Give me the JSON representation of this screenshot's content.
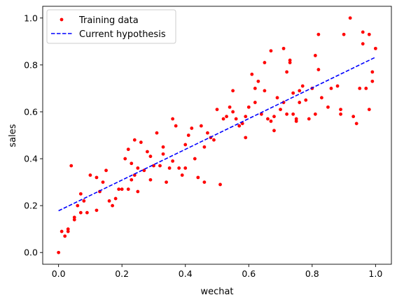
{
  "chart_data": {
    "type": "scatter",
    "title": "",
    "xlabel": "wechat",
    "ylabel": "sales",
    "xlim": [
      -0.05,
      1.05
    ],
    "ylim": [
      -0.05,
      1.05
    ],
    "xticks": [
      0.0,
      0.2,
      0.4,
      0.6,
      0.8,
      1.0
    ],
    "yticks": [
      0.0,
      0.2,
      0.4,
      0.6,
      0.8,
      1.0
    ],
    "xtick_labels": [
      "0.0",
      "0.2",
      "0.4",
      "0.6",
      "0.8",
      "1.0"
    ],
    "ytick_labels": [
      "0.0",
      "0.2",
      "0.4",
      "0.6",
      "0.8",
      "1.0"
    ],
    "grid": false,
    "legend": {
      "position": "top-left"
    },
    "series": [
      {
        "name": "Training data",
        "kind": "points",
        "color": "#ff0000",
        "points": [
          [
            0.0,
            0.0
          ],
          [
            0.01,
            0.09
          ],
          [
            0.02,
            0.07
          ],
          [
            0.03,
            0.1
          ],
          [
            0.03,
            0.09
          ],
          [
            0.04,
            0.37
          ],
          [
            0.05,
            0.15
          ],
          [
            0.05,
            0.14
          ],
          [
            0.06,
            0.2
          ],
          [
            0.07,
            0.25
          ],
          [
            0.07,
            0.17
          ],
          [
            0.08,
            0.22
          ],
          [
            0.09,
            0.17
          ],
          [
            0.1,
            0.33
          ],
          [
            0.12,
            0.18
          ],
          [
            0.12,
            0.32
          ],
          [
            0.13,
            0.26
          ],
          [
            0.14,
            0.3
          ],
          [
            0.15,
            0.35
          ],
          [
            0.16,
            0.22
          ],
          [
            0.17,
            0.2
          ],
          [
            0.18,
            0.23
          ],
          [
            0.19,
            0.27
          ],
          [
            0.2,
            0.27
          ],
          [
            0.21,
            0.4
          ],
          [
            0.22,
            0.27
          ],
          [
            0.22,
            0.44
          ],
          [
            0.23,
            0.31
          ],
          [
            0.23,
            0.38
          ],
          [
            0.24,
            0.33
          ],
          [
            0.24,
            0.48
          ],
          [
            0.25,
            0.36
          ],
          [
            0.25,
            0.26
          ],
          [
            0.26,
            0.47
          ],
          [
            0.27,
            0.35
          ],
          [
            0.28,
            0.43
          ],
          [
            0.29,
            0.41
          ],
          [
            0.29,
            0.31
          ],
          [
            0.3,
            0.37
          ],
          [
            0.31,
            0.51
          ],
          [
            0.32,
            0.37
          ],
          [
            0.33,
            0.42
          ],
          [
            0.33,
            0.45
          ],
          [
            0.34,
            0.3
          ],
          [
            0.35,
            0.36
          ],
          [
            0.36,
            0.57
          ],
          [
            0.36,
            0.39
          ],
          [
            0.37,
            0.54
          ],
          [
            0.38,
            0.36
          ],
          [
            0.39,
            0.33
          ],
          [
            0.4,
            0.46
          ],
          [
            0.4,
            0.36
          ],
          [
            0.41,
            0.5
          ],
          [
            0.42,
            0.53
          ],
          [
            0.43,
            0.4
          ],
          [
            0.44,
            0.32
          ],
          [
            0.45,
            0.54
          ],
          [
            0.46,
            0.45
          ],
          [
            0.46,
            0.3
          ],
          [
            0.47,
            0.51
          ],
          [
            0.48,
            0.49
          ],
          [
            0.49,
            0.48
          ],
          [
            0.5,
            0.61
          ],
          [
            0.51,
            0.29
          ],
          [
            0.52,
            0.57
          ],
          [
            0.53,
            0.58
          ],
          [
            0.54,
            0.62
          ],
          [
            0.55,
            0.6
          ],
          [
            0.55,
            0.69
          ],
          [
            0.56,
            0.57
          ],
          [
            0.57,
            0.54
          ],
          [
            0.58,
            0.55
          ],
          [
            0.59,
            0.58
          ],
          [
            0.59,
            0.49
          ],
          [
            0.6,
            0.62
          ],
          [
            0.61,
            0.76
          ],
          [
            0.62,
            0.7
          ],
          [
            0.62,
            0.64
          ],
          [
            0.63,
            0.73
          ],
          [
            0.64,
            0.59
          ],
          [
            0.65,
            0.69
          ],
          [
            0.65,
            0.81
          ],
          [
            0.66,
            0.57
          ],
          [
            0.67,
            0.86
          ],
          [
            0.67,
            0.56
          ],
          [
            0.68,
            0.52
          ],
          [
            0.68,
            0.58
          ],
          [
            0.69,
            0.66
          ],
          [
            0.7,
            0.61
          ],
          [
            0.71,
            0.87
          ],
          [
            0.71,
            0.64
          ],
          [
            0.72,
            0.77
          ],
          [
            0.72,
            0.59
          ],
          [
            0.73,
            0.82
          ],
          [
            0.73,
            0.81
          ],
          [
            0.74,
            0.59
          ],
          [
            0.74,
            0.68
          ],
          [
            0.75,
            0.57
          ],
          [
            0.75,
            0.56
          ],
          [
            0.76,
            0.69
          ],
          [
            0.76,
            0.64
          ],
          [
            0.77,
            0.71
          ],
          [
            0.78,
            0.65
          ],
          [
            0.79,
            0.57
          ],
          [
            0.8,
            0.7
          ],
          [
            0.81,
            0.84
          ],
          [
            0.81,
            0.59
          ],
          [
            0.82,
            0.78
          ],
          [
            0.82,
            0.93
          ],
          [
            0.83,
            0.66
          ],
          [
            0.85,
            0.62
          ],
          [
            0.86,
            0.7
          ],
          [
            0.88,
            0.71
          ],
          [
            0.89,
            0.59
          ],
          [
            0.89,
            0.61
          ],
          [
            0.9,
            0.93
          ],
          [
            0.92,
            1.0
          ],
          [
            0.93,
            0.58
          ],
          [
            0.94,
            0.55
          ],
          [
            0.95,
            0.7
          ],
          [
            0.96,
            0.94
          ],
          [
            0.96,
            0.89
          ],
          [
            0.97,
            0.7
          ],
          [
            0.98,
            0.93
          ],
          [
            0.98,
            0.61
          ],
          [
            0.99,
            0.77
          ],
          [
            0.99,
            0.73
          ],
          [
            1.0,
            0.87
          ]
        ]
      },
      {
        "name": "Current hypothesis",
        "kind": "line",
        "color": "#0000ff",
        "dashed": true,
        "points": [
          [
            0.0,
            0.178
          ],
          [
            1.0,
            0.833
          ]
        ]
      }
    ]
  }
}
